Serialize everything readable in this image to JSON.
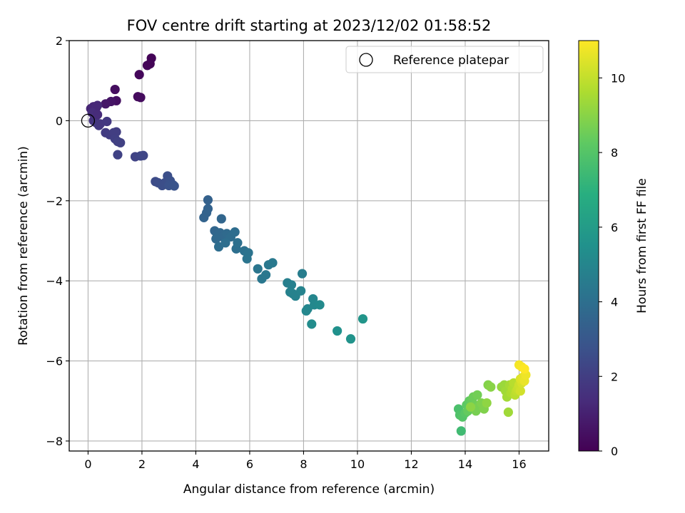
{
  "chart_data": {
    "type": "scatter",
    "title": "FOV centre drift starting at 2023/12/02 01:58:52",
    "xlabel": "Angular distance from reference (arcmin)",
    "ylabel": "Rotation from reference (arcmin)",
    "xlim": [
      -0.7,
      17.1
    ],
    "ylim": [
      -8.25,
      2.0
    ],
    "xticks": [
      0,
      2,
      4,
      6,
      8,
      10,
      12,
      14,
      16
    ],
    "xtick_labels": [
      "0",
      "2",
      "4",
      "6",
      "8",
      "10",
      "12",
      "14",
      "16"
    ],
    "yticks": [
      2,
      0,
      -2,
      -4,
      -6,
      -8
    ],
    "ytick_labels": [
      "2",
      "0",
      "−2",
      "−4",
      "−6",
      "−8"
    ],
    "grid": true,
    "legend": {
      "placement": "top-right",
      "entries": [
        "Reference platepar"
      ]
    },
    "reference_point": {
      "x": 0,
      "y": 0,
      "label": "Reference platepar"
    },
    "colorbar": {
      "label": "Hours from first FF file",
      "colormap": "viridis",
      "range": [
        0,
        11
      ],
      "ticks": [
        0,
        2,
        4,
        6,
        8,
        10
      ],
      "tick_labels": [
        "0",
        "2",
        "4",
        "6",
        "8",
        "10"
      ]
    },
    "points": [
      [
        1.0,
        0.78,
        0.4
      ],
      [
        1.05,
        0.5,
        0.45
      ],
      [
        0.85,
        0.48,
        0.6
      ],
      [
        0.65,
        0.42,
        0.7
      ],
      [
        1.9,
        1.15,
        0.2
      ],
      [
        2.2,
        1.38,
        0.15
      ],
      [
        2.35,
        1.56,
        0.1
      ],
      [
        2.3,
        1.42,
        0.12
      ],
      [
        1.85,
        0.6,
        0.3
      ],
      [
        1.95,
        0.58,
        0.35
      ],
      [
        0.1,
        0.3,
        1.1
      ],
      [
        0.2,
        0.35,
        1.2
      ],
      [
        0.3,
        0.32,
        1.3
      ],
      [
        0.35,
        0.38,
        1.25
      ],
      [
        0.15,
        0.2,
        1.4
      ],
      [
        0.25,
        0.1,
        1.5
      ],
      [
        0.2,
        0.0,
        1.6
      ],
      [
        0.3,
        -0.05,
        1.7
      ],
      [
        0.35,
        0.15,
        1.35
      ],
      [
        0.4,
        -0.12,
        1.8
      ],
      [
        0.45,
        -0.08,
        1.75
      ],
      [
        0.7,
        -0.02,
        1.8
      ],
      [
        0.65,
        -0.3,
        1.9
      ],
      [
        0.8,
        -0.35,
        1.95
      ],
      [
        0.95,
        -0.3,
        2.0
      ],
      [
        1.05,
        -0.28,
        2.0
      ],
      [
        1.0,
        -0.45,
        2.05
      ],
      [
        1.1,
        -0.52,
        2.1
      ],
      [
        1.2,
        -0.55,
        2.1
      ],
      [
        1.1,
        -0.85,
        2.15
      ],
      [
        1.75,
        -0.9,
        2.2
      ],
      [
        1.95,
        -0.88,
        2.25
      ],
      [
        2.05,
        -0.87,
        2.3
      ],
      [
        2.5,
        -1.52,
        2.5
      ],
      [
        2.6,
        -1.55,
        2.55
      ],
      [
        2.75,
        -1.62,
        2.6
      ],
      [
        2.85,
        -1.55,
        2.6
      ],
      [
        2.95,
        -1.38,
        2.65
      ],
      [
        3.05,
        -1.5,
        2.7
      ],
      [
        3.0,
        -1.62,
        2.75
      ],
      [
        3.15,
        -1.6,
        2.8
      ],
      [
        3.2,
        -1.63,
        2.85
      ],
      [
        4.45,
        -1.98,
        3.4
      ],
      [
        4.45,
        -2.2,
        3.45
      ],
      [
        4.4,
        -2.3,
        3.5
      ],
      [
        4.3,
        -2.42,
        3.5
      ],
      [
        4.7,
        -2.75,
        3.6
      ],
      [
        4.8,
        -2.85,
        3.65
      ],
      [
        4.9,
        -2.8,
        3.7
      ],
      [
        5.0,
        -2.9,
        3.7
      ],
      [
        4.75,
        -2.95,
        3.75
      ],
      [
        4.95,
        -2.45,
        3.6
      ],
      [
        5.15,
        -2.82,
        3.8
      ],
      [
        5.3,
        -2.9,
        3.85
      ],
      [
        5.45,
        -2.78,
        3.9
      ],
      [
        4.85,
        -3.15,
        3.9
      ],
      [
        5.1,
        -3.05,
        3.95
      ],
      [
        5.5,
        -3.2,
        4.0
      ],
      [
        5.55,
        -3.05,
        4.05
      ],
      [
        5.8,
        -3.25,
        4.1
      ],
      [
        5.95,
        -3.3,
        4.15
      ],
      [
        5.9,
        -3.45,
        4.2
      ],
      [
        6.3,
        -3.7,
        4.3
      ],
      [
        6.45,
        -3.95,
        4.35
      ],
      [
        6.6,
        -3.85,
        4.4
      ],
      [
        6.7,
        -3.6,
        4.4
      ],
      [
        6.85,
        -3.55,
        4.45
      ],
      [
        7.95,
        -3.82,
        4.6
      ],
      [
        7.4,
        -4.05,
        4.7
      ],
      [
        7.55,
        -4.1,
        4.75
      ],
      [
        7.5,
        -4.28,
        4.8
      ],
      [
        7.6,
        -4.32,
        4.85
      ],
      [
        7.7,
        -4.38,
        4.85
      ],
      [
        7.9,
        -4.25,
        4.9
      ],
      [
        8.15,
        -4.7,
        5.0
      ],
      [
        8.35,
        -4.45,
        5.0
      ],
      [
        8.1,
        -4.75,
        5.05
      ],
      [
        8.4,
        -4.6,
        5.1
      ],
      [
        8.6,
        -4.6,
        5.2
      ],
      [
        8.3,
        -5.08,
        5.3
      ],
      [
        9.25,
        -5.25,
        5.5
      ],
      [
        9.75,
        -5.45,
        5.6
      ],
      [
        10.2,
        -4.95,
        5.7
      ],
      [
        13.85,
        -7.75,
        7.5
      ],
      [
        13.75,
        -7.2,
        7.8
      ],
      [
        13.8,
        -7.35,
        7.9
      ],
      [
        13.9,
        -7.4,
        8.0
      ],
      [
        14.0,
        -7.3,
        8.1
      ],
      [
        14.05,
        -7.1,
        8.2
      ],
      [
        14.15,
        -7.0,
        8.3
      ],
      [
        14.1,
        -7.25,
        8.35
      ],
      [
        14.25,
        -7.0,
        8.4
      ],
      [
        14.3,
        -6.9,
        8.5
      ],
      [
        14.35,
        -7.1,
        8.55
      ],
      [
        14.45,
        -6.85,
        8.6
      ],
      [
        14.5,
        -7.15,
        8.7
      ],
      [
        14.4,
        -7.25,
        8.7
      ],
      [
        14.6,
        -7.05,
        8.8
      ],
      [
        14.7,
        -7.2,
        8.85
      ],
      [
        14.85,
        -6.6,
        8.9
      ],
      [
        14.95,
        -6.65,
        9.0
      ],
      [
        14.2,
        -7.15,
        9.05
      ],
      [
        14.8,
        -7.05,
        9.1
      ],
      [
        15.35,
        -6.65,
        9.2
      ],
      [
        15.45,
        -6.6,
        9.3
      ],
      [
        15.5,
        -6.75,
        9.4
      ],
      [
        15.55,
        -6.9,
        9.45
      ],
      [
        15.6,
        -7.28,
        9.4
      ],
      [
        15.65,
        -6.6,
        9.5
      ],
      [
        15.7,
        -6.8,
        9.6
      ],
      [
        15.75,
        -6.7,
        9.7
      ],
      [
        15.8,
        -6.55,
        9.8
      ],
      [
        15.85,
        -6.85,
        9.85
      ],
      [
        15.9,
        -6.75,
        9.95
      ],
      [
        15.95,
        -6.7,
        10.05
      ],
      [
        16.0,
        -6.6,
        10.15
      ],
      [
        16.05,
        -6.75,
        10.25
      ],
      [
        16.1,
        -6.55,
        10.35
      ],
      [
        16.05,
        -6.45,
        10.45
      ],
      [
        16.15,
        -6.4,
        10.55
      ],
      [
        16.2,
        -6.5,
        10.65
      ],
      [
        16.25,
        -6.35,
        10.75
      ],
      [
        16.0,
        -6.1,
        10.85
      ],
      [
        16.1,
        -6.15,
        10.9
      ],
      [
        16.2,
        -6.2,
        11.0
      ]
    ]
  }
}
